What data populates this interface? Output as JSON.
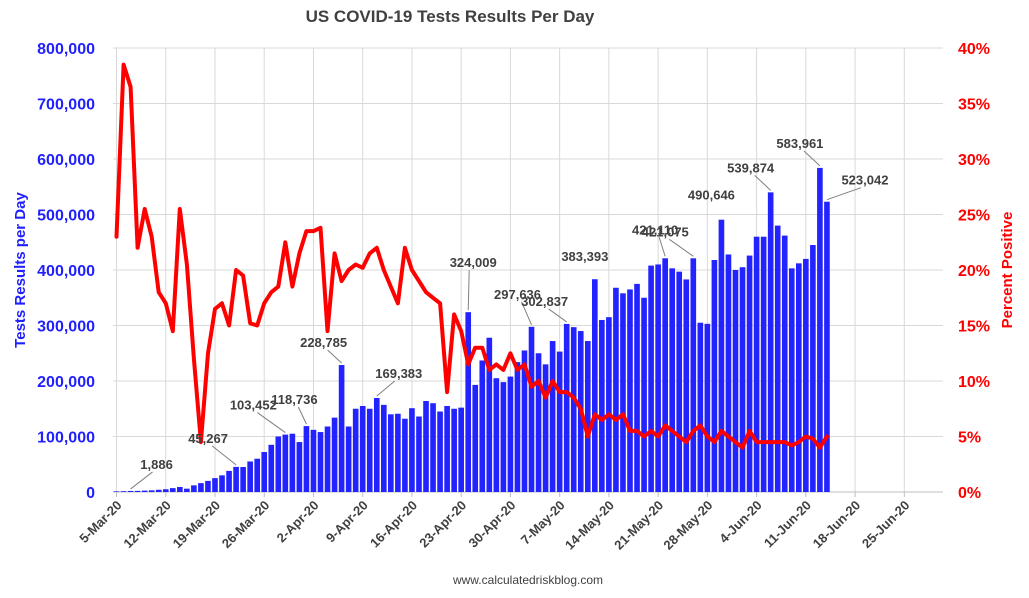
{
  "chart_data": {
    "type": "bar+line",
    "title": "US COVID-19 Tests Results Per Day",
    "ylabel_left": "Tests Results per Day",
    "ylabel_right": "Percent Positive",
    "footer": "www.calculatedriskblog.com",
    "ylim_left": [
      0,
      800000
    ],
    "ylim_right": [
      0,
      40
    ],
    "y_ticks_left": [
      "0",
      "100,000",
      "200,000",
      "300,000",
      "400,000",
      "500,000",
      "600,000",
      "700,000",
      "800,000"
    ],
    "y_ticks_right": [
      "0%",
      "5%",
      "10%",
      "15%",
      "20%",
      "25%",
      "30%",
      "35%",
      "40%"
    ],
    "x_tick_labels": [
      "5-Mar-20",
      "12-Mar-20",
      "19-Mar-20",
      "26-Mar-20",
      "2-Apr-20",
      "9-Apr-20",
      "16-Apr-20",
      "23-Apr-20",
      "30-Apr-20",
      "7-May-20",
      "14-May-20",
      "21-May-20",
      "28-May-20",
      "4-Jun-20",
      "11-Jun-20",
      "18-Jun-20",
      "25-Jun-20"
    ],
    "x_start_date": "2020-03-05",
    "x_end_date": "2020-06-30",
    "colors": {
      "bars": "#2323ff",
      "line": "#ff0000",
      "left_axis": "#1f1fff",
      "right_axis": "#ff0000"
    },
    "series": [
      {
        "name": "Tests Results per Day",
        "type": "bar",
        "x_start": "2020-03-05",
        "values": [
          1200,
          1500,
          1886,
          2000,
          2500,
          3000,
          4000,
          5000,
          7000,
          9000,
          6000,
          12000,
          16000,
          20000,
          25000,
          30000,
          38000,
          45267,
          45000,
          55000,
          60000,
          72000,
          85000,
          100000,
          103452,
          105000,
          90000,
          118736,
          112000,
          108000,
          118000,
          134000,
          228785,
          118000,
          150000,
          155000,
          150000,
          169383,
          157000,
          140000,
          141000,
          132000,
          151000,
          136000,
          164000,
          160000,
          145000,
          155000,
          150000,
          152000,
          324009,
          193000,
          237000,
          278000,
          205000,
          198000,
          208000,
          234000,
          255000,
          297636,
          250000,
          230000,
          272000,
          253000,
          302837,
          297000,
          290000,
          272000,
          383393,
          310000,
          315000,
          368000,
          358000,
          365000,
          375000,
          350000,
          408000,
          410000,
          421110,
          403000,
          397000,
          383000,
          421075,
          305000,
          303000,
          418000,
          490646,
          428000,
          400000,
          405000,
          426000,
          460000,
          460000,
          539874,
          480000,
          462000,
          403000,
          412000,
          420000,
          445000,
          583961,
          523042
        ]
      },
      {
        "name": "Percent Positive",
        "type": "line",
        "x_start": "2020-03-05",
        "values": [
          23,
          38.5,
          36.5,
          22,
          25.5,
          23,
          18,
          17,
          14.5,
          25.5,
          20.5,
          12,
          4.5,
          12.5,
          16.5,
          17,
          15,
          20,
          19.5,
          15.2,
          15,
          17,
          18,
          18.5,
          22.5,
          18.5,
          21.5,
          23.5,
          23.5,
          23.8,
          14.5,
          21.5,
          19,
          20,
          20.5,
          20.2,
          21.5,
          22,
          20,
          18.5,
          17,
          22,
          20,
          19,
          18,
          17.5,
          17,
          9,
          16,
          14.5,
          11.5,
          13,
          13,
          11,
          11.5,
          11,
          12.5,
          11,
          11.5,
          9.5,
          10,
          8.5,
          10,
          9,
          9,
          8.5,
          7.5,
          5,
          7,
          6.5,
          7,
          6.5,
          7,
          5.5,
          5.5,
          5,
          5.5,
          5,
          6,
          5.5,
          5,
          4.5,
          5.5,
          6,
          5,
          4.5,
          5.5,
          5,
          4.5,
          4,
          5.5,
          4.5,
          4.5,
          4.5,
          4.5,
          4.5,
          4.2,
          4.5,
          5,
          4.8,
          4,
          5
        ]
      }
    ],
    "annotations": [
      {
        "label": "1,886",
        "index": 2,
        "value": 1886
      },
      {
        "label": "45,267",
        "index": 17,
        "value": 45267
      },
      {
        "label": "103,452",
        "index": 24,
        "value": 103452
      },
      {
        "label": "118,736",
        "index": 27,
        "value": 118736
      },
      {
        "label": "228,785",
        "index": 32,
        "value": 228785
      },
      {
        "label": "169,383",
        "index": 37,
        "value": 169383
      },
      {
        "label": "324,009",
        "index": 50,
        "value": 324009
      },
      {
        "label": "297,636",
        "index": 59,
        "value": 297636
      },
      {
        "label": "302,837",
        "index": 64,
        "value": 302837
      },
      {
        "label": "383,393",
        "index": 68,
        "value": 383393
      },
      {
        "label": "421,110",
        "index": 78,
        "value": 421110
      },
      {
        "label": "421,075",
        "index": 82,
        "value": 421075
      },
      {
        "label": "490,646",
        "index": 86,
        "value": 490646
      },
      {
        "label": "539,874",
        "index": 93,
        "value": 539874
      },
      {
        "label": "583,961",
        "index": 100,
        "value": 583961
      },
      {
        "label": "523,042",
        "index": 101,
        "value": 523042
      }
    ]
  }
}
